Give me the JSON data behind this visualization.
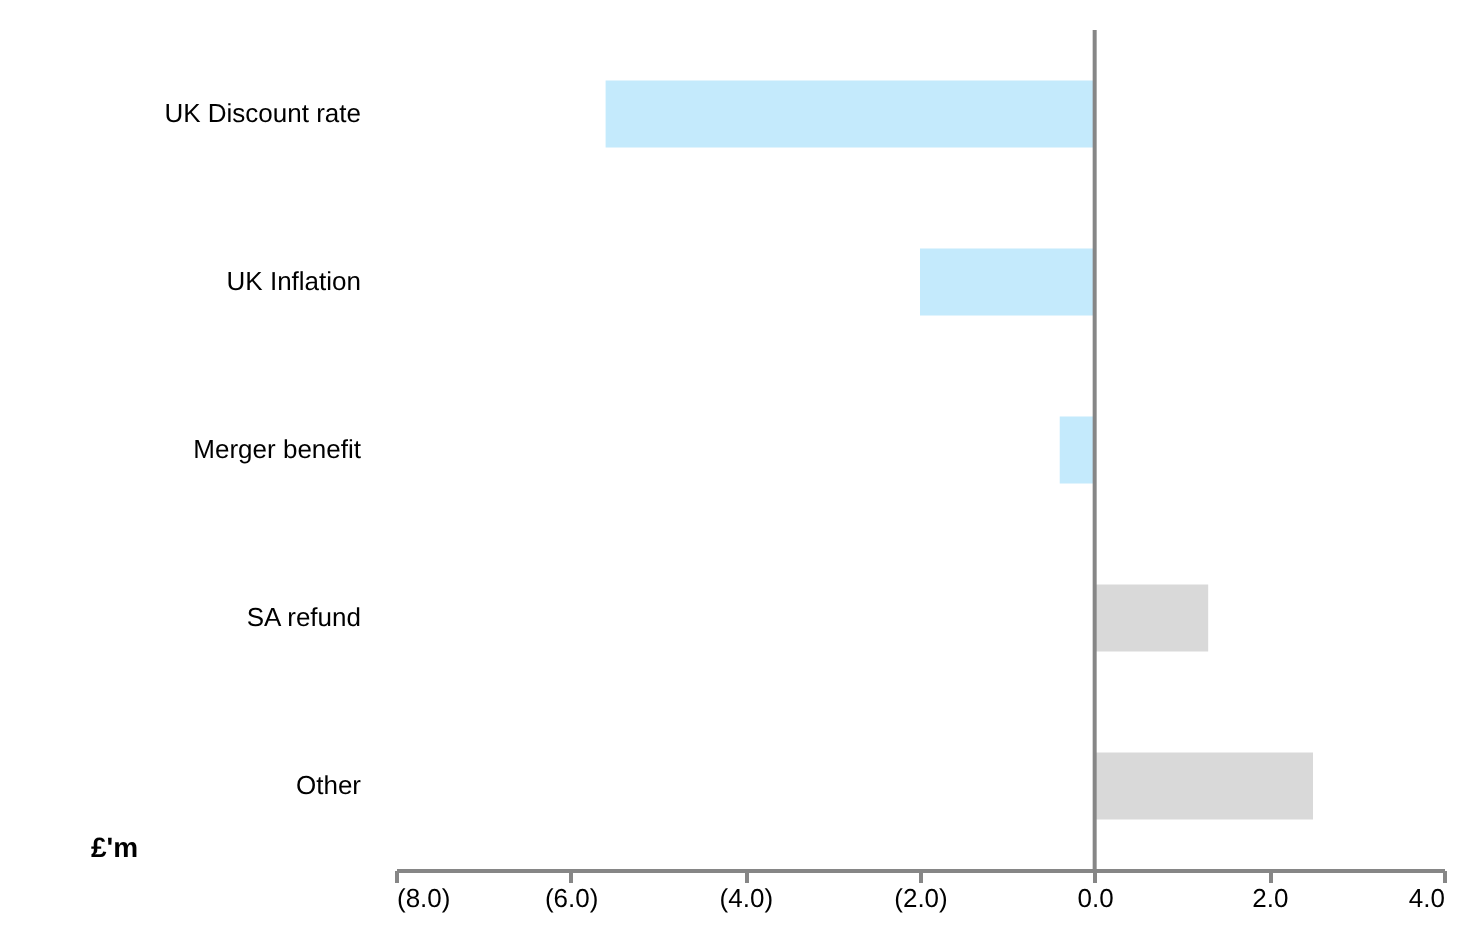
{
  "chart_data": {
    "type": "bar",
    "orientation": "horizontal",
    "xlabel": "£'m",
    "categories": [
      "UK Discount rate",
      "UK Inflation",
      "Merger benefit",
      "SA refund",
      "Other"
    ],
    "values": [
      -5.6,
      -2.0,
      -0.4,
      1.3,
      2.5
    ],
    "colors": [
      "#c4eafc",
      "#c4eafc",
      "#c4eafc",
      "#d9d9d9",
      "#d9d9d9"
    ],
    "xlim": [
      -8,
      4
    ],
    "xticks": [
      {
        "value": -8,
        "label": "(8.0)"
      },
      {
        "value": -6,
        "label": "(6.0)"
      },
      {
        "value": -4,
        "label": "(4.0)"
      },
      {
        "value": -2,
        "label": "(2.0)"
      },
      {
        "value": 0,
        "label": "0.0"
      },
      {
        "value": 2,
        "label": "2.0"
      },
      {
        "value": 4,
        "label": "4.0"
      }
    ]
  }
}
